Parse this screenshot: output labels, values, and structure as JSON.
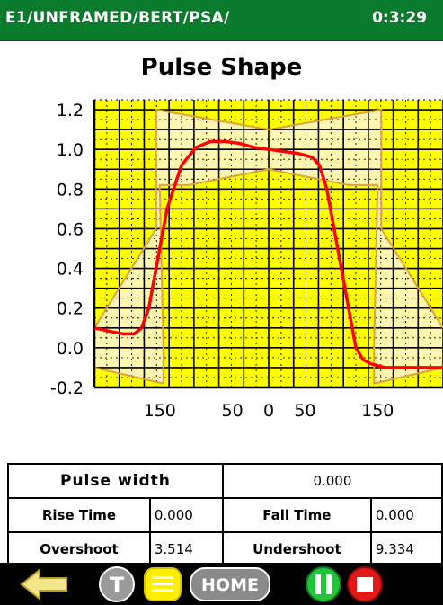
{
  "header": {
    "path": "E1/UNFRAMED/BERT/PSA/",
    "time": "0:3:29"
  },
  "colors": {
    "header_bg": "#0a7a2c",
    "plot_bg": "#ffff00",
    "mask_fill": "#fff6b0",
    "mask_line": "#e0a040",
    "pulse": "#ff0000",
    "grid": "#000000"
  },
  "chart_data": {
    "type": "line",
    "title": "Pulse Shape",
    "xlabel": "",
    "ylabel": "",
    "ylim": [
      -0.2,
      1.25
    ],
    "xlim": [
      -240,
      240
    ],
    "y_ticks": [
      "1.2",
      "1.0",
      "0.8",
      "0.6",
      "0.4",
      "0.2",
      "0.0",
      "-0.2"
    ],
    "y_tick_values": [
      1.2,
      1.0,
      0.8,
      0.6,
      0.4,
      0.2,
      0.0,
      -0.2
    ],
    "x_ticks": [
      "150",
      "50",
      "0",
      "50",
      "150"
    ],
    "x_tick_values": [
      -150,
      -50,
      0,
      50,
      150
    ],
    "grid": true,
    "series": [
      {
        "values_x": [
          -240,
          -215,
          -200,
          -185,
          -175,
          -170,
          -165,
          -155,
          -140,
          -120,
          -100,
          -80,
          -60,
          -40,
          -20,
          0,
          20,
          40,
          60,
          70,
          80,
          90,
          100,
          110,
          120,
          130,
          140,
          160,
          180,
          200,
          220,
          240
        ],
        "values_y": [
          0.1,
          0.08,
          0.07,
          0.07,
          0.1,
          0.15,
          0.2,
          0.4,
          0.7,
          0.92,
          1.01,
          1.04,
          1.04,
          1.03,
          1.01,
          1.0,
          0.99,
          0.98,
          0.96,
          0.92,
          0.8,
          0.6,
          0.4,
          0.2,
          0.0,
          -0.06,
          -0.08,
          -0.1,
          -0.1,
          -0.1,
          -0.1,
          -0.1
        ]
      }
    ],
    "mask_upper": {
      "x": [
        -240,
        -155,
        -155,
        0,
        155,
        155,
        240
      ],
      "y": [
        0.1,
        0.6,
        1.2,
        1.1,
        1.2,
        0.6,
        0.1
      ]
    },
    "mask_lower": {
      "x": [
        -240,
        -145,
        -145,
        -150,
        -110,
        0,
        110,
        150,
        145,
        145,
        240
      ],
      "y": [
        -0.1,
        -0.18,
        0.0,
        0.82,
        0.82,
        0.9,
        0.82,
        0.82,
        0.0,
        -0.18,
        -0.1
      ]
    }
  },
  "table": {
    "pulse_width_label": "Pulse width",
    "pulse_width_value": "0.000",
    "rise_time_label": "Rise Time",
    "rise_time_value": "0.000",
    "fall_time_label": "Fall Time",
    "fall_time_value": "0.000",
    "overshoot_label": "Overshoot",
    "overshoot_value": "3.514",
    "undershoot_label": "Undershoot",
    "undershoot_value": "9.334"
  },
  "toolbar": {
    "back_icon": "back-arrow-icon",
    "t_label": "T",
    "list_icon": "list-icon",
    "home_label": "HOME",
    "pause_icon": "pause-icon",
    "stop_icon": "stop-icon"
  }
}
